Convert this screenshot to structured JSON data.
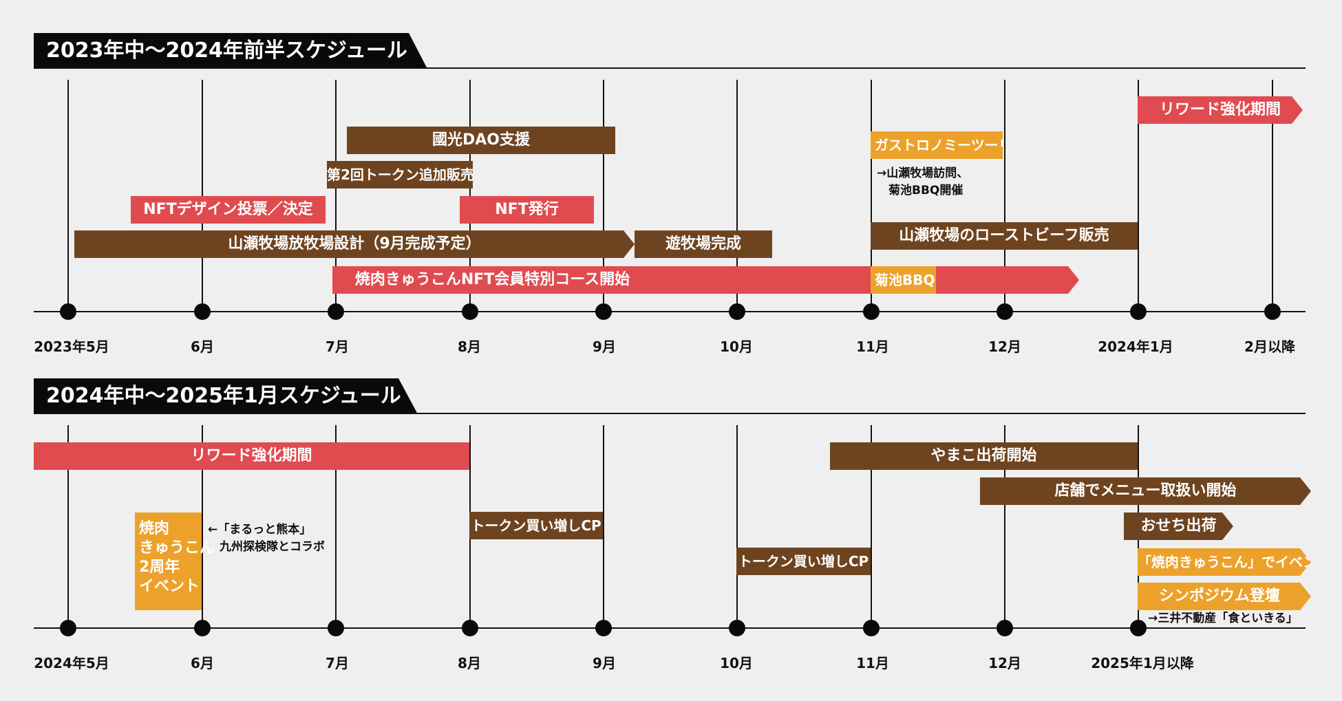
{
  "section1": {
    "title": "2023年中～2024年前半スケジュール",
    "months": [
      "2023年5月",
      "6月",
      "7月",
      "8月",
      "9月",
      "10月",
      "11月",
      "12月",
      "2024年1月",
      "2月以降"
    ],
    "bars": {
      "reward": "リワード強化期間",
      "kokko": "國光DAO支援",
      "gastro": "ガストロノミーツーリズム",
      "token2": "第2回トークン追加販売",
      "nft_design": "NFTデザイン投票／決定",
      "nft_issue": "NFT発行",
      "ranch_design": "山瀬牧場放牧場設計（9月完成予定）",
      "ranch_done": "遊牧場完成",
      "roastbeef": "山瀬牧場のローストビーフ販売",
      "yakiniku_course": "焼肉きゅうこんNFT会員特別コース開始",
      "kikuchi": "菊池BBQ"
    },
    "notes": {
      "gastro_note": "→山瀬牧場訪問、\n　菊池BBQ開催"
    }
  },
  "section2": {
    "title": "2024年中～2025年1月スケジュール",
    "months": [
      "2024年5月",
      "6月",
      "7月",
      "8月",
      "9月",
      "10月",
      "11月",
      "12月",
      "2025年1月以降"
    ],
    "bars": {
      "reward": "リワード強化期間",
      "yamako": "やまこ出荷開始",
      "shop_menu": "店舗でメニュー取扱い開始",
      "token_cp1": "トークン買い増しCP",
      "token_cp2": "トークン買い増しCP",
      "osechi": "おせち出荷",
      "yakiniku_event": "「焼肉きゅうこん」でイベント",
      "symposium": "シンポジウム登壇",
      "anniversary": "焼肉\nきゅうこん\n2周年\nイベント"
    },
    "notes": {
      "collab_note": "←「まるっと熊本」\n　九州探検隊とコラボ",
      "symposium_note": "→三井不動産「食といきる」"
    }
  }
}
